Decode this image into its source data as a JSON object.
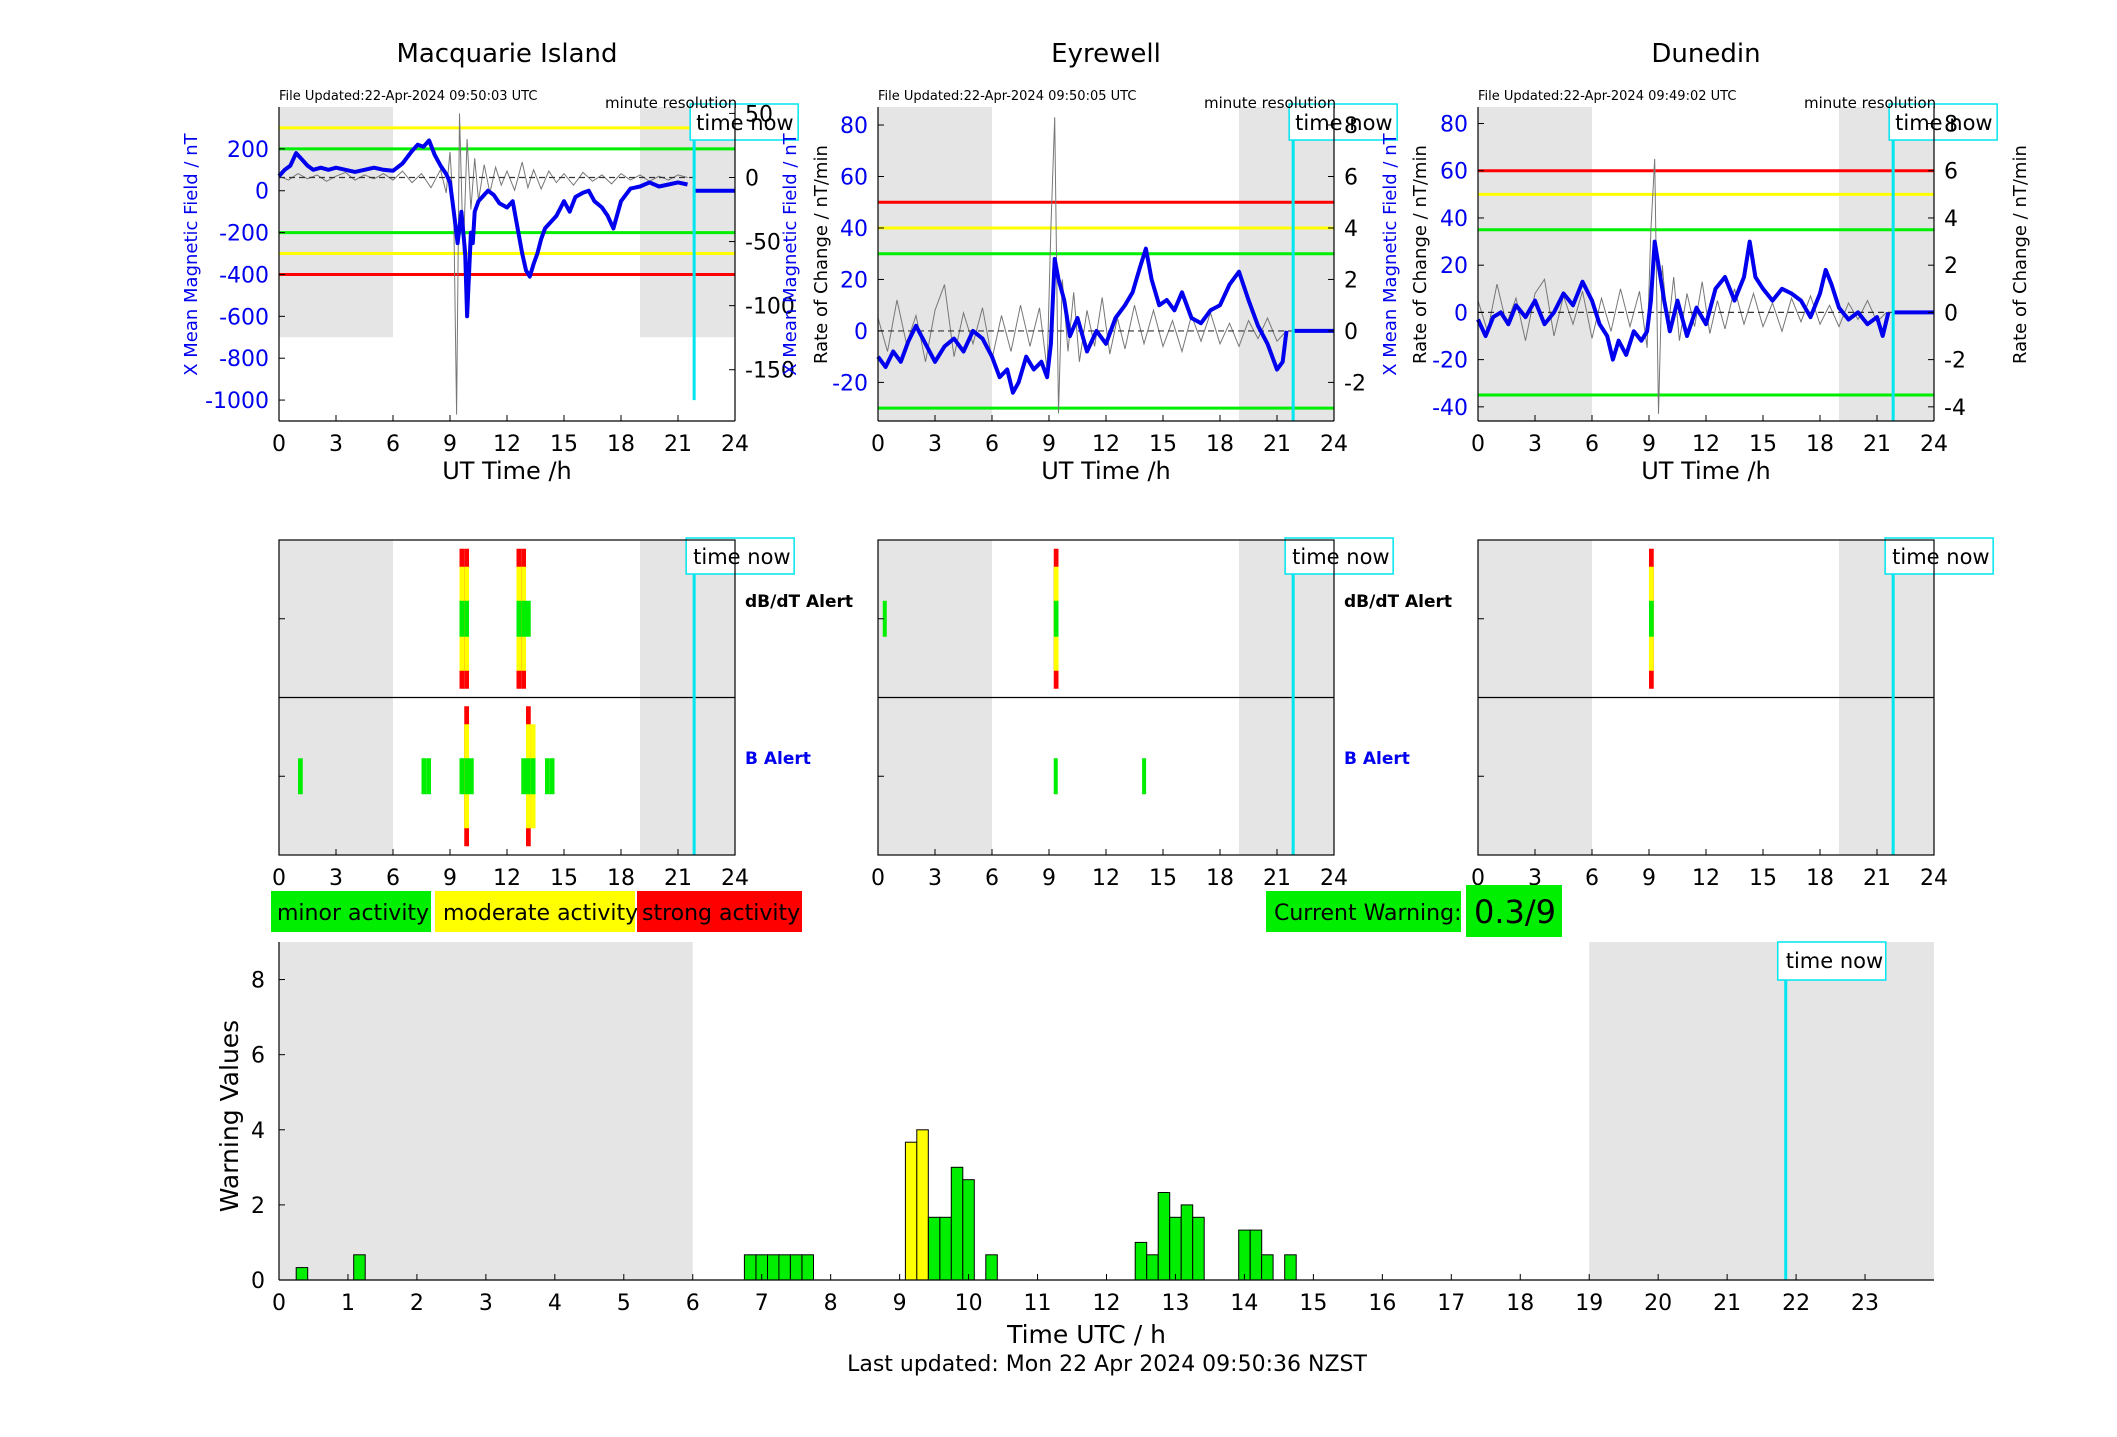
{
  "footer": {
    "last_updated": "Last updated: Mon 22 Apr 2024 09:50:36 NZST"
  },
  "colors": {
    "minor": "#00ee00",
    "moderate": "#ffff00",
    "strong": "#ff0000",
    "time_now": "#00e5ee",
    "field_line": "#0000ee",
    "night": "#e5e5e5"
  },
  "labels": {
    "time_now": "time now",
    "minute_resolution": "minute resolution",
    "dbdt_alert": "dB/dT Alert",
    "b_alert": "B Alert",
    "ut_time": "UT Time /h",
    "x_field": "X Mean Magnetic Field / nT",
    "rate": "Rate of Change / nT/min"
  },
  "legend": {
    "minor": "minor activity",
    "moderate": "moderate activity",
    "strong": "strong activity"
  },
  "current_warning": {
    "label": "Current Warning:",
    "value": "0.3/9"
  },
  "time_now_hour": 21.85,
  "chart_data": [
    {
      "type": "line",
      "title": "Macquarie Island",
      "file_updated": "File Updated:22-Apr-2024 09:50:03 UTC",
      "xlabel": "UT Time /h",
      "ylabel": "X Mean Magnetic Field / nT",
      "ylabel_right": "Rate of Change / nT/min",
      "xlim": [
        0,
        24
      ],
      "xticks": [
        0,
        3,
        6,
        9,
        12,
        15,
        18,
        21,
        24
      ],
      "ylim": [
        -1100,
        400
      ],
      "yticks": [
        200,
        0,
        -200,
        -400,
        -600,
        -800,
        -1000
      ],
      "ylim_right": [
        -190,
        55
      ],
      "yticks_right": [
        50,
        0,
        -50,
        -100,
        -150
      ],
      "night": [
        [
          0,
          6
        ],
        [
          19,
          24
        ]
      ],
      "shade_y": [
        -700,
        400
      ],
      "thresholds": [
        {
          "level": "minor",
          "values": [
            200,
            -200
          ]
        },
        {
          "level": "moderate",
          "values": [
            300,
            -300
          ]
        },
        {
          "level": "strong",
          "values": [
            -400
          ]
        }
      ],
      "x_field": {
        "x": [
          0,
          0.3,
          0.6,
          0.9,
          1.2,
          1.5,
          1.8,
          2.2,
          2.6,
          3,
          3.5,
          4,
          4.5,
          5,
          5.5,
          6,
          6.5,
          7,
          7.3,
          7.6,
          7.9,
          8.2,
          8.5,
          8.8,
          9,
          9.2,
          9.4,
          9.6,
          9.8,
          9.9,
          10,
          10.1,
          10.2,
          10.3,
          10.5,
          10.8,
          11,
          11.3,
          11.6,
          12,
          12.3,
          12.6,
          12.8,
          13,
          13.2,
          13.4,
          13.6,
          13.8,
          14,
          14.3,
          14.6,
          15,
          15.3,
          15.6,
          16,
          16.3,
          16.6,
          17,
          17.3,
          17.6,
          18,
          18.5,
          19,
          19.5,
          20,
          20.5,
          21,
          21.5
        ],
        "y": [
          70,
          100,
          120,
          180,
          150,
          120,
          100,
          110,
          100,
          110,
          100,
          90,
          100,
          110,
          100,
          95,
          130,
          190,
          220,
          210,
          240,
          170,
          120,
          80,
          40,
          -100,
          -250,
          -100,
          -300,
          -600,
          -400,
          -200,
          -250,
          -100,
          -50,
          -20,
          0,
          -20,
          -60,
          -80,
          -50,
          -200,
          -300,
          -380,
          -410,
          -350,
          -300,
          -230,
          -180,
          -150,
          -120,
          -50,
          -100,
          -30,
          -10,
          0,
          -50,
          -80,
          -120,
          -180,
          -50,
          10,
          20,
          40,
          20,
          30,
          40,
          30
        ]
      },
      "x_field_after_now": 0,
      "rate": {
        "x": [
          0,
          0.5,
          1,
          1.5,
          2,
          2.5,
          3,
          3.5,
          4,
          4.5,
          5,
          5.5,
          6,
          6.5,
          7,
          7.5,
          8,
          8.5,
          8.8,
          9,
          9.2,
          9.35,
          9.5,
          9.7,
          9.9,
          10.1,
          10.3,
          10.5,
          10.8,
          11.1,
          11.4,
          11.7,
          12,
          12.4,
          12.8,
          13.1,
          13.4,
          13.8,
          14.2,
          14.6,
          15,
          15.5,
          16,
          16.5,
          17,
          17.5,
          18,
          18.5,
          19,
          19.5,
          20,
          20.5,
          21,
          21.5
        ],
        "y": [
          1,
          -2,
          3,
          -1,
          2,
          -3,
          1,
          4,
          -2,
          2,
          -1,
          3,
          -2,
          5,
          -4,
          3,
          -8,
          6,
          -12,
          20,
          -30,
          -185,
          50,
          -60,
          30,
          -25,
          15,
          -18,
          10,
          -12,
          8,
          -6,
          5,
          -10,
          12,
          -8,
          6,
          -9,
          5,
          -4,
          3,
          -6,
          4,
          -3,
          2,
          -5,
          3,
          -2,
          2,
          -3,
          1,
          -2,
          2,
          0
        ]
      }
    },
    {
      "type": "line",
      "title": "Eyrewell",
      "file_updated": "File Updated:22-Apr-2024 09:50:05 UTC",
      "xlabel": "UT Time /h",
      "ylabel": "X Mean Magnetic Field / nT",
      "ylabel_right": "Rate of Change / nT/min",
      "xlim": [
        0,
        24
      ],
      "xticks": [
        0,
        3,
        6,
        9,
        12,
        15,
        18,
        21,
        24
      ],
      "ylim": [
        -35,
        87
      ],
      "yticks": [
        80,
        60,
        40,
        20,
        0,
        -20
      ],
      "ylim_right": [
        -3.5,
        8.7
      ],
      "yticks_right": [
        8,
        6,
        4,
        2,
        0,
        -2
      ],
      "night": [
        [
          0,
          6
        ],
        [
          19,
          24
        ]
      ],
      "shade_y": [
        -35,
        87
      ],
      "thresholds": [
        {
          "level": "strong",
          "values": [
            50
          ]
        },
        {
          "level": "moderate",
          "values": [
            40
          ]
        },
        {
          "level": "minor",
          "values": [
            30,
            -30
          ]
        }
      ],
      "x_field": {
        "x": [
          0,
          0.4,
          0.8,
          1.2,
          1.6,
          2,
          2.5,
          3,
          3.5,
          4,
          4.5,
          5,
          5.5,
          6,
          6.4,
          6.8,
          7.1,
          7.4,
          7.8,
          8.2,
          8.6,
          8.9,
          9.1,
          9.3,
          9.5,
          9.8,
          10.1,
          10.5,
          11,
          11.5,
          12,
          12.5,
          13,
          13.4,
          13.8,
          14.1,
          14.4,
          14.8,
          15.2,
          15.6,
          16,
          16.5,
          17,
          17.5,
          18,
          18.5,
          19,
          19.5,
          20,
          20.5,
          21,
          21.3,
          21.5
        ],
        "y": [
          -10,
          -14,
          -8,
          -12,
          -4,
          2,
          -5,
          -12,
          -6,
          -3,
          -8,
          0,
          -3,
          -10,
          -18,
          -15,
          -24,
          -20,
          -10,
          -15,
          -12,
          -18,
          -5,
          28,
          20,
          12,
          -2,
          5,
          -8,
          0,
          -5,
          5,
          10,
          15,
          25,
          32,
          20,
          10,
          12,
          8,
          15,
          5,
          3,
          8,
          10,
          18,
          23,
          12,
          2,
          -5,
          -15,
          -12,
          0
        ]
      },
      "x_field_after_now": 0,
      "rate": {
        "x": [
          0,
          0.5,
          1,
          1.5,
          2,
          2.5,
          3,
          3.5,
          4,
          4.5,
          5,
          5.5,
          6,
          6.5,
          7,
          7.5,
          8,
          8.5,
          8.9,
          9.1,
          9.3,
          9.5,
          9.7,
          10,
          10.3,
          10.6,
          11,
          11.4,
          11.8,
          12.2,
          12.6,
          13,
          13.5,
          14,
          14.5,
          15,
          15.5,
          16,
          16.5,
          17,
          17.5,
          18,
          18.5,
          19,
          19.5,
          20,
          20.5,
          21,
          21.5
        ],
        "y": [
          0.5,
          -0.8,
          1.2,
          -0.5,
          0.6,
          -1.2,
          0.8,
          1.8,
          -1,
          0.7,
          -0.5,
          0.9,
          -1.1,
          0.6,
          -0.8,
          1,
          -0.6,
          0.9,
          -1.5,
          4,
          8.3,
          -3.2,
          2,
          -0.8,
          1.5,
          -1.2,
          0.8,
          -0.6,
          1.3,
          -0.9,
          0.5,
          -0.7,
          1,
          -0.5,
          0.8,
          -0.6,
          0.4,
          -0.8,
          0.6,
          -0.4,
          0.7,
          -0.5,
          0.3,
          -0.6,
          0.4,
          -0.3,
          0.5,
          -0.4,
          0
        ]
      }
    },
    {
      "type": "line",
      "title": "Dunedin",
      "file_updated": "File Updated:22-Apr-2024 09:49:02 UTC",
      "xlabel": "UT Time /h",
      "ylabel": "X Mean Magnetic Field / nT",
      "ylabel_right": "Rate of Change / nT/min",
      "xlim": [
        0,
        24
      ],
      "xticks": [
        0,
        3,
        6,
        9,
        12,
        15,
        18,
        21,
        24
      ],
      "ylim": [
        -46,
        87
      ],
      "yticks": [
        80,
        60,
        40,
        20,
        0,
        -20,
        -40
      ],
      "ylim_right": [
        -4.6,
        8.7
      ],
      "yticks_right": [
        8,
        6,
        4,
        2,
        0,
        -2,
        -4
      ],
      "night": [
        [
          0,
          6
        ],
        [
          19,
          24
        ]
      ],
      "shade_y": [
        -46,
        87
      ],
      "thresholds": [
        {
          "level": "strong",
          "values": [
            60
          ]
        },
        {
          "level": "moderate",
          "values": [
            50
          ]
        },
        {
          "level": "minor",
          "values": [
            35,
            -35
          ]
        }
      ],
      "x_field": {
        "x": [
          0,
          0.4,
          0.8,
          1.2,
          1.6,
          2,
          2.5,
          3,
          3.5,
          4,
          4.5,
          5,
          5.5,
          6,
          6.4,
          6.8,
          7.1,
          7.4,
          7.8,
          8.2,
          8.6,
          8.9,
          9.1,
          9.3,
          9.5,
          9.8,
          10.1,
          10.5,
          11,
          11.5,
          12,
          12.5,
          13,
          13.5,
          14,
          14.3,
          14.6,
          15,
          15.5,
          16,
          16.5,
          17,
          17.5,
          18,
          18.3,
          18.6,
          19,
          19.5,
          20,
          20.5,
          21,
          21.3,
          21.6
        ],
        "y": [
          -3,
          -10,
          -2,
          0,
          -5,
          3,
          -2,
          5,
          -5,
          0,
          8,
          3,
          13,
          5,
          -5,
          -10,
          -20,
          -12,
          -18,
          -8,
          -12,
          -8,
          5,
          30,
          20,
          5,
          -8,
          5,
          -10,
          2,
          -5,
          10,
          15,
          5,
          15,
          30,
          15,
          10,
          5,
          10,
          8,
          5,
          -2,
          8,
          18,
          12,
          2,
          -3,
          0,
          -5,
          -2,
          -10,
          0
        ]
      },
      "x_field_after_now": 0,
      "rate": {
        "x": [
          0,
          0.5,
          1,
          1.5,
          2,
          2.5,
          3,
          3.5,
          4,
          4.5,
          5,
          5.5,
          6,
          6.5,
          7,
          7.5,
          8,
          8.5,
          8.9,
          9.1,
          9.3,
          9.5,
          9.7,
          10,
          10.3,
          10.6,
          11,
          11.4,
          11.8,
          12.2,
          12.6,
          13,
          13.5,
          14,
          14.5,
          15,
          15.5,
          16,
          16.5,
          17,
          17.5,
          18,
          18.5,
          19,
          19.5,
          20,
          20.5,
          21,
          21.5
        ],
        "y": [
          0.5,
          -0.8,
          1.2,
          -0.5,
          0.6,
          -1.2,
          0.8,
          1.4,
          -1,
          0.7,
          -0.5,
          0.9,
          -1.1,
          0.6,
          -0.8,
          1,
          -0.6,
          0.9,
          -1.5,
          3.5,
          6.5,
          -4.3,
          2,
          -0.8,
          1.5,
          -1.2,
          0.8,
          -0.6,
          1.3,
          -0.9,
          0.5,
          -0.7,
          1,
          -0.5,
          0.8,
          -0.6,
          0.4,
          -0.8,
          0.6,
          -0.4,
          0.7,
          -0.5,
          0.3,
          -0.6,
          0.4,
          -0.3,
          0.5,
          -0.4,
          0
        ]
      }
    },
    {
      "type": "bar",
      "station": "Macquarie Island",
      "xlim": [
        0,
        24
      ],
      "xticks": [
        0,
        3,
        6,
        9,
        12,
        15,
        18,
        21,
        24
      ],
      "night": [
        [
          0,
          6
        ],
        [
          19,
          24
        ]
      ],
      "dbdt_alerts": [
        {
          "hour": 9.5,
          "level": 3
        },
        {
          "hour": 9.75,
          "level": 3
        },
        {
          "hour": 12.5,
          "level": 3
        },
        {
          "hour": 12.75,
          "level": 3
        },
        {
          "hour": 13,
          "level": 1
        }
      ],
      "b_alerts": [
        {
          "hour": 1.0,
          "level": 1
        },
        {
          "hour": 7.5,
          "level": 1
        },
        {
          "hour": 7.75,
          "level": 1
        },
        {
          "hour": 9.5,
          "level": 1
        },
        {
          "hour": 9.75,
          "level": 3
        },
        {
          "hour": 10,
          "level": 1
        },
        {
          "hour": 12.75,
          "level": 1
        },
        {
          "hour": 13,
          "level": 3
        },
        {
          "hour": 13.25,
          "level": 2
        },
        {
          "hour": 14,
          "level": 1
        },
        {
          "hour": 14.25,
          "level": 1
        }
      ]
    },
    {
      "type": "bar",
      "station": "Eyrewell",
      "xlim": [
        0,
        24
      ],
      "xticks": [
        0,
        3,
        6,
        9,
        12,
        15,
        18,
        21,
        24
      ],
      "night": [
        [
          0,
          6
        ],
        [
          19,
          24
        ]
      ],
      "dbdt_alerts": [
        {
          "hour": 0.25,
          "level": 1,
          "width": 0.1
        },
        {
          "hour": 9.25,
          "level": 3
        }
      ],
      "b_alerts": [
        {
          "hour": 9.25,
          "level": 1,
          "width": 0.12
        },
        {
          "hour": 13.9,
          "level": 1,
          "width": 0.15
        }
      ]
    },
    {
      "type": "bar",
      "station": "Dunedin",
      "xlim": [
        0,
        24
      ],
      "xticks": [
        0,
        3,
        6,
        9,
        12,
        15,
        18,
        21,
        24
      ],
      "night": [
        [
          0,
          6
        ],
        [
          19,
          24
        ]
      ],
      "dbdt_alerts": [
        {
          "hour": 9.0,
          "level": 3
        }
      ],
      "b_alerts": []
    },
    {
      "type": "bar",
      "xlabel": "Time UTC / h",
      "ylabel": "Warning Values",
      "xlim": [
        0,
        24
      ],
      "xticks": [
        0,
        1,
        2,
        3,
        4,
        5,
        6,
        7,
        8,
        9,
        10,
        11,
        12,
        13,
        14,
        15,
        16,
        17,
        18,
        19,
        20,
        21,
        22,
        23
      ],
      "ylim": [
        0,
        9
      ],
      "yticks": [
        0,
        2,
        4,
        6,
        8
      ],
      "night": [
        [
          0,
          6
        ],
        [
          19,
          24
        ]
      ],
      "bar_width": 0.1667,
      "x": [
        0.333,
        1.167,
        6.833,
        7.0,
        7.167,
        7.333,
        7.5,
        7.667,
        9.167,
        9.333,
        9.5,
        9.667,
        9.833,
        10.0,
        10.333,
        12.5,
        12.667,
        12.833,
        13.0,
        13.167,
        13.333,
        14.0,
        14.167,
        14.333,
        14.667
      ],
      "values": [
        0.33,
        0.67,
        0.67,
        0.67,
        0.67,
        0.67,
        0.67,
        0.67,
        3.67,
        4.0,
        1.67,
        1.67,
        3.0,
        2.67,
        0.67,
        1.0,
        0.67,
        2.33,
        1.67,
        2.0,
        1.67,
        1.33,
        1.33,
        0.67,
        0.67
      ],
      "levels": [
        "minor",
        "minor",
        "minor",
        "minor",
        "minor",
        "minor",
        "minor",
        "minor",
        "moderate",
        "moderate",
        "minor",
        "minor",
        "minor",
        "minor",
        "minor",
        "minor",
        "minor",
        "minor",
        "minor",
        "minor",
        "minor",
        "minor",
        "minor",
        "minor",
        "minor"
      ]
    }
  ]
}
